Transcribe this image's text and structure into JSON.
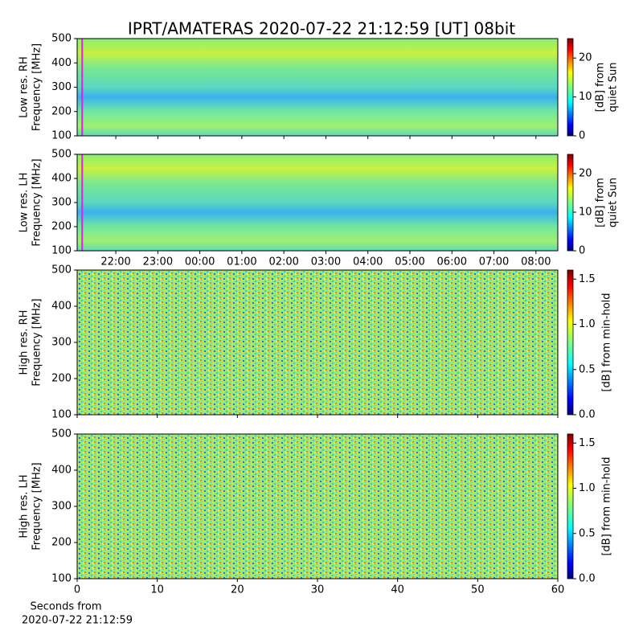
{
  "title": "IPRT/AMATERAS 2020-07-22 21:12:59 [UT]   08bit",
  "chart_data": [
    {
      "type": "heatmap",
      "colormap": "jet",
      "ylabel": [
        "Low res. RH",
        "Frequency [MHz]"
      ],
      "xlim": [
        21.08,
        32.52
      ],
      "xticks": [
        {
          "value": 22,
          "label": "22:00"
        },
        {
          "value": 23,
          "label": "23:00"
        },
        {
          "value": 24,
          "label": "00:00"
        },
        {
          "value": 25,
          "label": "01:00"
        },
        {
          "value": 26,
          "label": "02:00"
        },
        {
          "value": 27,
          "label": "03:00"
        },
        {
          "value": 28,
          "label": "04:00"
        },
        {
          "value": 29,
          "label": "05:00"
        },
        {
          "value": 30,
          "label": "06:00"
        },
        {
          "value": 31,
          "label": "07:00"
        },
        {
          "value": 32,
          "label": "08:00"
        }
      ],
      "xtick_labels": false,
      "marker_x": 21.2,
      "marker_color": "#e020e0",
      "ylim": [
        100,
        500
      ],
      "yticks": [
        100,
        200,
        300,
        400,
        500
      ],
      "colorbar": {
        "label": [
          "[dB] from",
          "quiet Sun"
        ],
        "lim": [
          0,
          25
        ],
        "ticks": [
          0,
          10,
          20
        ]
      }
    },
    {
      "type": "heatmap",
      "colormap": "jet",
      "ylabel": [
        "Low res. LH",
        "Frequency [MHz]"
      ],
      "xlim": [
        21.08,
        32.52
      ],
      "xticks": [
        {
          "value": 22,
          "label": "22:00"
        },
        {
          "value": 23,
          "label": "23:00"
        },
        {
          "value": 24,
          "label": "00:00"
        },
        {
          "value": 25,
          "label": "01:00"
        },
        {
          "value": 26,
          "label": "02:00"
        },
        {
          "value": 27,
          "label": "03:00"
        },
        {
          "value": 28,
          "label": "04:00"
        },
        {
          "value": 29,
          "label": "05:00"
        },
        {
          "value": 30,
          "label": "06:00"
        },
        {
          "value": 31,
          "label": "07:00"
        },
        {
          "value": 32,
          "label": "08:00"
        }
      ],
      "xtick_labels": true,
      "marker_x": 21.2,
      "marker_color": "#e020e0",
      "ylim": [
        100,
        500
      ],
      "yticks": [
        100,
        200,
        300,
        400,
        500
      ],
      "colorbar": {
        "label": [
          "[dB] from",
          "quiet Sun"
        ],
        "lim": [
          0,
          25
        ],
        "ticks": [
          0,
          10,
          20
        ]
      }
    },
    {
      "type": "heatmap",
      "colormap": "jet",
      "ylabel": [
        "High res. RH",
        "Frequency [MHz]"
      ],
      "xlim": [
        0,
        60
      ],
      "xticks": [
        0,
        10,
        20,
        30,
        40,
        50,
        60
      ],
      "xtick_labels": false,
      "ylim": [
        100,
        500
      ],
      "yticks": [
        100,
        200,
        300,
        400,
        500
      ],
      "colorbar": {
        "label": [
          "[dB] from min-hold"
        ],
        "lim": [
          0,
          1.6
        ],
        "ticks": [
          {
            "value": 0,
            "label": "0.0"
          },
          {
            "value": 0.5,
            "label": "0.5"
          },
          {
            "value": 1,
            "label": "1.0"
          },
          {
            "value": 1.5,
            "label": "1.5"
          }
        ]
      }
    },
    {
      "type": "heatmap",
      "colormap": "jet",
      "ylabel": [
        "High res. LH",
        "Frequency [MHz]"
      ],
      "xlim": [
        0,
        60
      ],
      "xticks": [
        0,
        10,
        20,
        30,
        40,
        50,
        60
      ],
      "xtick_labels": true,
      "xlabel": [
        "Seconds from",
        "2020-07-22 21:12:59"
      ],
      "ylim": [
        100,
        500
      ],
      "yticks": [
        100,
        200,
        300,
        400,
        500
      ],
      "colorbar": {
        "label": [
          "[dB] from min-hold"
        ],
        "lim": [
          0,
          1.6
        ],
        "ticks": [
          {
            "value": 0,
            "label": "0.0"
          },
          {
            "value": 0.5,
            "label": "0.5"
          },
          {
            "value": 1,
            "label": "1.0"
          },
          {
            "value": 1.5,
            "label": "1.5"
          }
        ]
      }
    }
  ]
}
